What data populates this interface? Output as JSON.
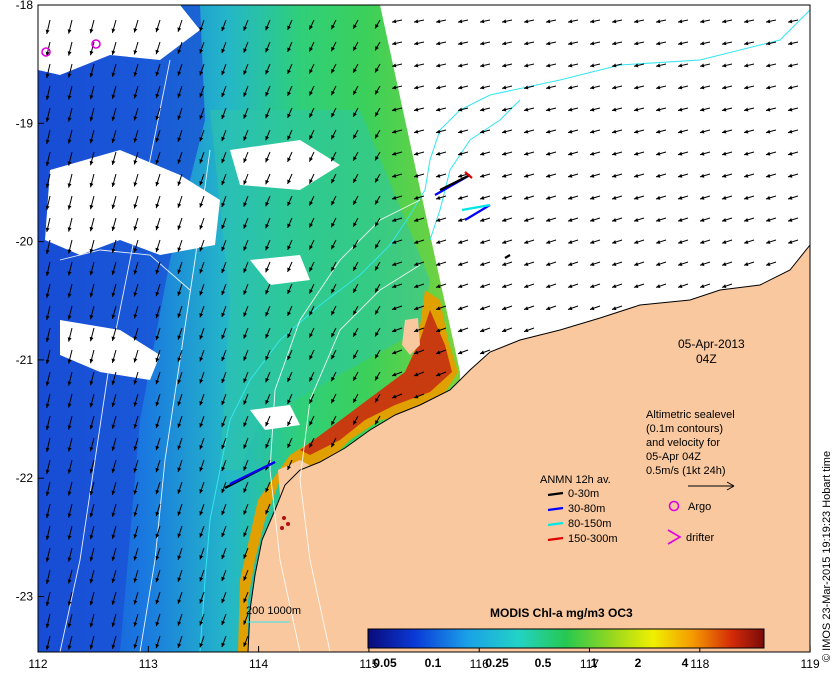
{
  "map": {
    "date_label": "05-Apr-2013",
    "time_label": "04Z",
    "lon_ticks": [
      "112",
      "113",
      "114",
      "115",
      "116",
      "117",
      "118",
      "119"
    ],
    "lat_ticks": [
      "-18",
      "-19",
      "-20",
      "-21",
      "-22",
      "-23"
    ],
    "altimetry_lines": [
      "Altimetric sealevel",
      "(0.1m contours)",
      "and velocity for",
      "05-Apr 04Z",
      "0.5m/s (1kt 24h)"
    ],
    "anmn_title": "ANMN 12h av.",
    "anmn_entries": [
      {
        "label": "0-30m",
        "color": "#000000"
      },
      {
        "label": "30-80m",
        "color": "#0000ff"
      },
      {
        "label": "80-150m",
        "color": "#00e5e5"
      },
      {
        "label": "150-300m",
        "color": "#e00000"
      }
    ],
    "argo_label": "Argo",
    "drifter_label": "drifter",
    "bathy_label": "200  1000m",
    "colorbar_title": "MODIS Chl-a mg/m3 OC3",
    "colorbar_ticks": [
      "0.05",
      "0.1",
      "0.25",
      "0.5",
      "1",
      "2",
      "4"
    ],
    "credit": "© IMOS 23-Mar-2015 19:19:23 Hobart time",
    "colors": {
      "land": "#f9c89f",
      "low_chl": "#1a4fd6",
      "mid_chl": "#2fbfc9",
      "high_chl": "#d23a10",
      "argo": "#e000e0",
      "contour": "#7fe8ff"
    }
  }
}
